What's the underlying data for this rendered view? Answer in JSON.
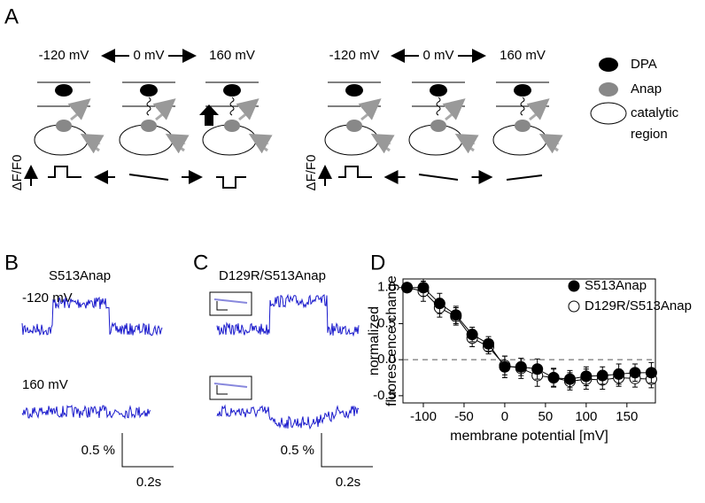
{
  "panel_labels": [
    "A",
    "B",
    "C",
    "D"
  ],
  "panel_a": {
    "left": {
      "voltages": [
        "-120 mV",
        "0 mV",
        "160 mV"
      ],
      "ylabel": "ΔF/F0"
    },
    "right": {
      "voltages": [
        "-120 mV",
        "0 mV",
        "160 mV"
      ],
      "ylabel": "ΔF/F0"
    },
    "legend": [
      {
        "label_lines": [
          "DPA"
        ]
      },
      {
        "label_lines": [
          "Anap"
        ]
      },
      {
        "label_lines": [
          "catalytic",
          "region"
        ]
      }
    ]
  },
  "panel_b": {
    "title": "S513Anap",
    "traces": [
      "-120 mV",
      "160 mV"
    ],
    "scale_y": "0.5 %",
    "scale_x": "0.2s"
  },
  "panel_c": {
    "title": "D129R/S513Anap",
    "scale_y": "0.5 %",
    "scale_x": "0.2s"
  },
  "chart_data": {
    "type": "line",
    "ylabel": [
      "normalized",
      "fluorescence change"
    ],
    "xlabel": "membrane potential [mV]",
    "x": [
      -120,
      -100,
      -80,
      -60,
      -40,
      -20,
      0,
      20,
      40,
      60,
      80,
      100,
      120,
      140,
      160,
      180
    ],
    "series": [
      {
        "name": "S513Anap",
        "color": "#000000",
        "marker": "filled",
        "values": [
          1.0,
          1.0,
          0.78,
          0.62,
          0.35,
          0.22,
          -0.1,
          -0.1,
          -0.13,
          -0.25,
          -0.27,
          -0.23,
          -0.22,
          -0.2,
          -0.18,
          -0.18
        ],
        "errors": [
          0.06,
          0.12,
          0.14,
          0.12,
          0.1,
          0.1,
          0.15,
          0.12,
          0.14,
          0.12,
          0.12,
          0.13,
          0.12,
          0.14,
          0.12,
          0.14
        ]
      },
      {
        "name": "D129R/S513Anap",
        "color": "#000000",
        "marker": "open",
        "values": [
          1.0,
          0.95,
          0.72,
          0.6,
          0.3,
          0.18,
          -0.08,
          -0.12,
          -0.22,
          -0.25,
          -0.3,
          -0.27,
          -0.28,
          -0.25,
          -0.26,
          -0.27
        ],
        "errors": [
          0.06,
          0.14,
          0.13,
          0.12,
          0.12,
          0.1,
          0.13,
          0.14,
          0.15,
          0.13,
          0.12,
          0.14,
          0.13,
          0.12,
          0.12,
          0.12
        ]
      }
    ],
    "xlim": [
      -125,
      185
    ],
    "ylim": [
      -0.6,
      1.12
    ],
    "xticks": [
      -100,
      -50,
      0,
      50,
      100,
      150
    ],
    "yticks": [
      {
        "value": 1.0,
        "label": "1.0"
      },
      0.5,
      {
        "value": 0.0,
        "label": "0.0"
      },
      -0.5
    ],
    "zero_line": "dashed",
    "legend": "upper right"
  }
}
